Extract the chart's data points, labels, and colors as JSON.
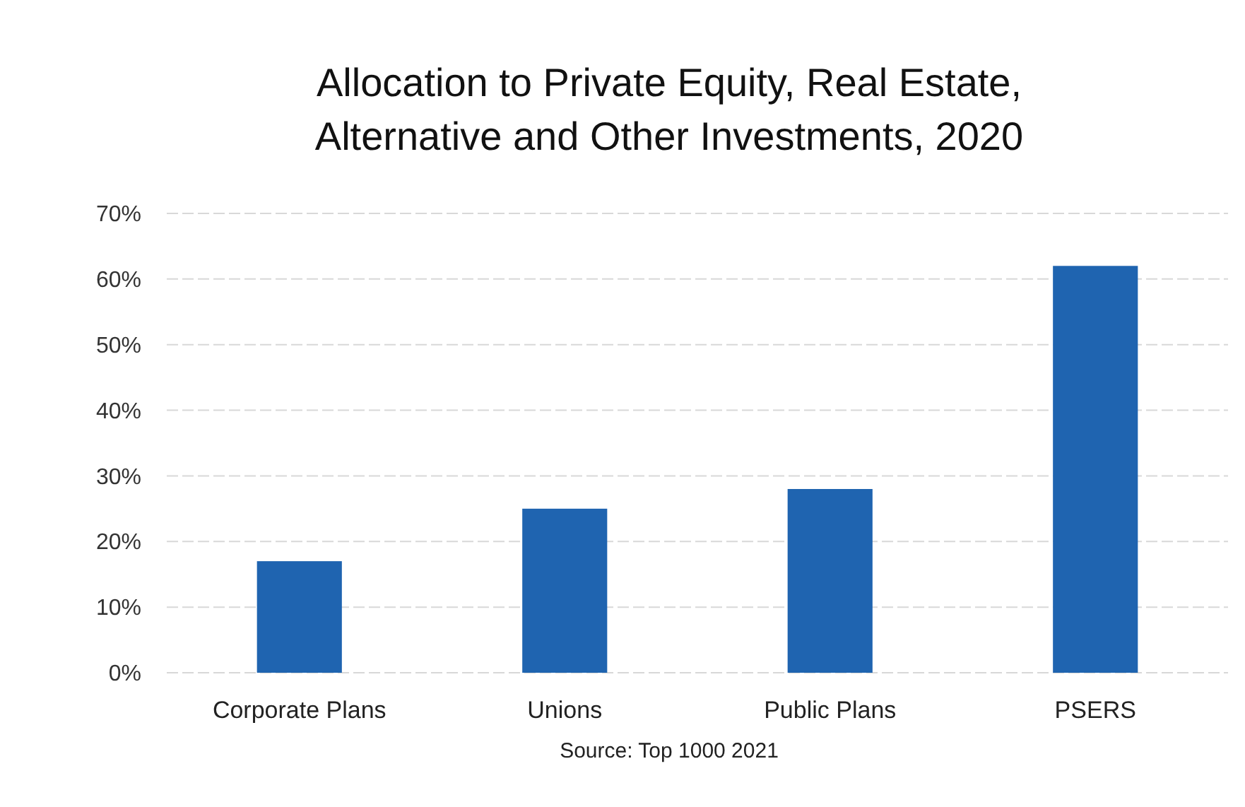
{
  "chart_data": {
    "type": "bar",
    "title": "Allocation to Private Equity, Real Estate,\nAlternative and Other Investments, 2020",
    "categories": [
      "Corporate Plans",
      "Unions",
      "Public Plans",
      "PSERS"
    ],
    "values": [
      17,
      25,
      28,
      62
    ],
    "color": "#1f64b0",
    "ylim": [
      0,
      70
    ],
    "yticks": [
      {
        "value": 0,
        "label": "0%"
      },
      {
        "value": 10,
        "label": "10%"
      },
      {
        "value": 20,
        "label": "20%"
      },
      {
        "value": 30,
        "label": "30%"
      },
      {
        "value": 40,
        "label": "40%"
      },
      {
        "value": 50,
        "label": "50%"
      },
      {
        "value": 60,
        "label": "60%"
      },
      {
        "value": 70,
        "label": "70%"
      }
    ],
    "grid": "y",
    "annotations": [
      "Source: Top 1000 2021"
    ]
  }
}
